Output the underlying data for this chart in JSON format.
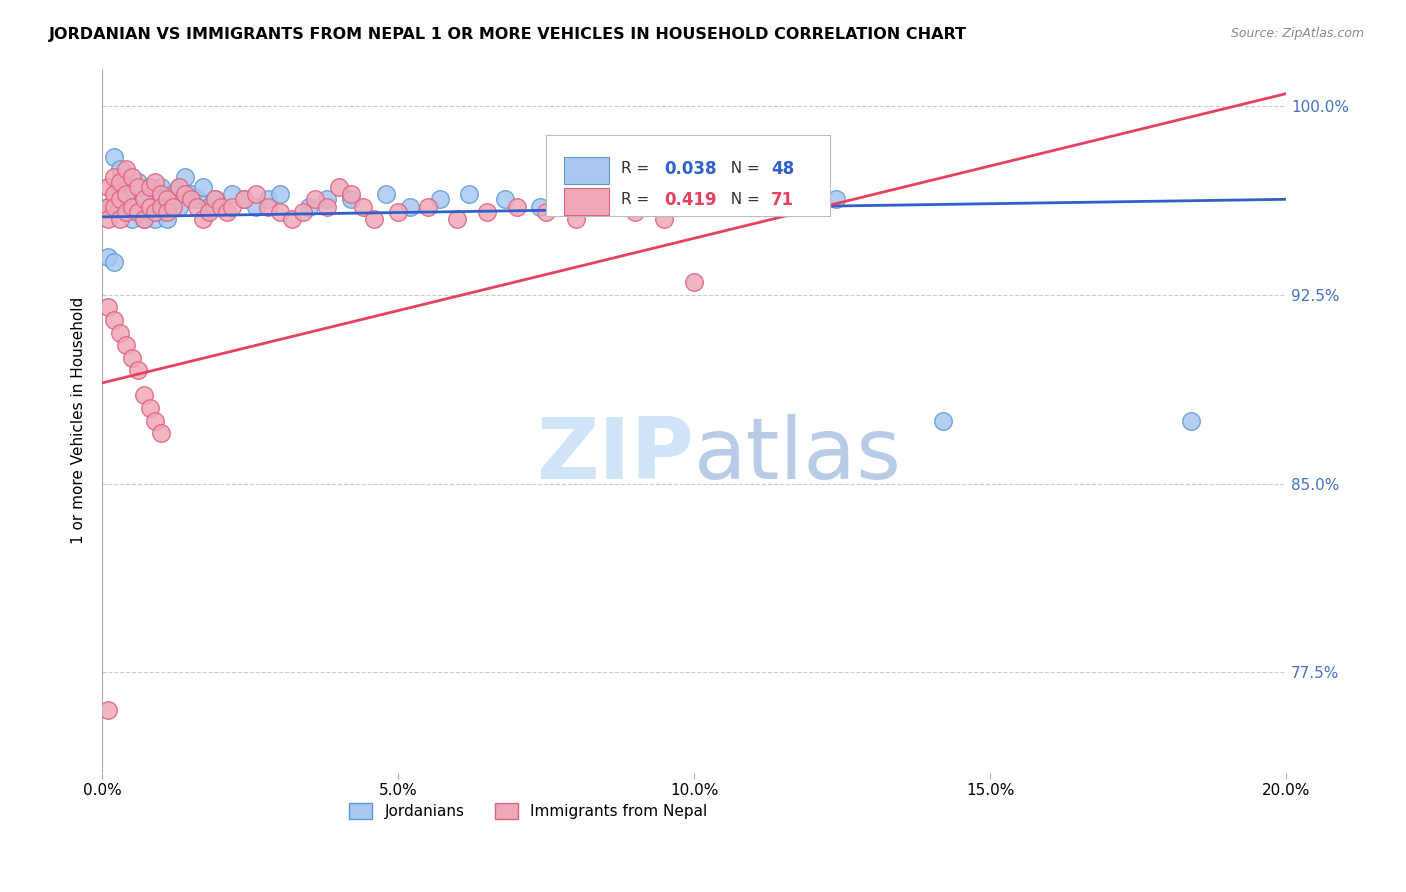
{
  "title": "JORDANIAN VS IMMIGRANTS FROM NEPAL 1 OR MORE VEHICLES IN HOUSEHOLD CORRELATION CHART",
  "source": "Source: ZipAtlas.com",
  "ylabel": "1 or more Vehicles in Household",
  "xlim": [
    0.0,
    0.2
  ],
  "ylim": [
    0.735,
    1.015
  ],
  "xticks": [
    0.0,
    0.05,
    0.1,
    0.15,
    0.2
  ],
  "xticklabels": [
    "0.0%",
    "5.0%",
    "10.0%",
    "15.0%",
    "20.0%"
  ],
  "yticks": [
    0.775,
    0.85,
    0.925,
    1.0
  ],
  "yticklabels": [
    "77.5%",
    "85.0%",
    "92.5%",
    "100.0%"
  ],
  "ytick_color": "#4472c4",
  "jordanian_color": "#a8c8f0",
  "nepal_color": "#f0a8b8",
  "jordanian_edge": "#5b9bd5",
  "nepal_edge": "#e06080",
  "blue_line_color": "#3060cc",
  "pink_line_color": "#e84060",
  "watermark_color": "#d0e4f8",
  "r_blue": 0.038,
  "n_blue": 48,
  "r_pink": 0.419,
  "n_pink": 71,
  "blue_line_y0": 0.956,
  "blue_line_y1": 0.963,
  "pink_line_y0": 0.89,
  "pink_line_y1": 1.005,
  "jordanians_x": [
    0.001,
    0.002,
    0.003,
    0.003,
    0.004,
    0.004,
    0.005,
    0.005,
    0.006,
    0.006,
    0.007,
    0.007,
    0.008,
    0.008,
    0.009,
    0.01,
    0.01,
    0.011,
    0.011,
    0.012,
    0.013,
    0.013,
    0.014,
    0.015,
    0.016,
    0.017,
    0.018,
    0.019,
    0.02,
    0.022,
    0.024,
    0.026,
    0.028,
    0.03,
    0.035,
    0.038,
    0.042,
    0.048,
    0.052,
    0.057,
    0.062,
    0.068,
    0.074,
    0.001,
    0.002,
    0.124,
    0.142,
    0.184
  ],
  "jordanians_y": [
    0.96,
    0.98,
    0.968,
    0.975,
    0.97,
    0.965,
    0.96,
    0.955,
    0.97,
    0.958,
    0.963,
    0.955,
    0.968,
    0.96,
    0.955,
    0.968,
    0.963,
    0.96,
    0.955,
    0.965,
    0.96,
    0.968,
    0.972,
    0.965,
    0.963,
    0.968,
    0.96,
    0.963,
    0.96,
    0.965,
    0.963,
    0.96,
    0.963,
    0.965,
    0.96,
    0.963,
    0.963,
    0.965,
    0.96,
    0.963,
    0.965,
    0.963,
    0.96,
    0.94,
    0.938,
    0.963,
    0.875,
    0.875
  ],
  "nepal_x": [
    0.001,
    0.001,
    0.001,
    0.002,
    0.002,
    0.002,
    0.003,
    0.003,
    0.003,
    0.004,
    0.004,
    0.004,
    0.005,
    0.005,
    0.006,
    0.006,
    0.007,
    0.007,
    0.008,
    0.008,
    0.009,
    0.009,
    0.01,
    0.01,
    0.011,
    0.011,
    0.012,
    0.013,
    0.014,
    0.015,
    0.016,
    0.017,
    0.018,
    0.019,
    0.02,
    0.021,
    0.022,
    0.024,
    0.026,
    0.028,
    0.03,
    0.032,
    0.034,
    0.036,
    0.038,
    0.04,
    0.042,
    0.044,
    0.046,
    0.05,
    0.055,
    0.06,
    0.065,
    0.07,
    0.075,
    0.08,
    0.085,
    0.09,
    0.095,
    0.1,
    0.001,
    0.002,
    0.003,
    0.004,
    0.005,
    0.006,
    0.007,
    0.008,
    0.009,
    0.01,
    0.001
  ],
  "nepal_y": [
    0.968,
    0.96,
    0.955,
    0.972,
    0.965,
    0.96,
    0.97,
    0.963,
    0.955,
    0.975,
    0.965,
    0.958,
    0.972,
    0.96,
    0.968,
    0.958,
    0.963,
    0.955,
    0.968,
    0.96,
    0.97,
    0.958,
    0.965,
    0.96,
    0.963,
    0.958,
    0.96,
    0.968,
    0.965,
    0.963,
    0.96,
    0.955,
    0.958,
    0.963,
    0.96,
    0.958,
    0.96,
    0.963,
    0.965,
    0.96,
    0.958,
    0.955,
    0.958,
    0.963,
    0.96,
    0.968,
    0.965,
    0.96,
    0.955,
    0.958,
    0.96,
    0.955,
    0.958,
    0.96,
    0.958,
    0.955,
    0.96,
    0.958,
    0.955,
    0.93,
    0.92,
    0.915,
    0.91,
    0.905,
    0.9,
    0.895,
    0.885,
    0.88,
    0.875,
    0.87,
    0.76
  ]
}
